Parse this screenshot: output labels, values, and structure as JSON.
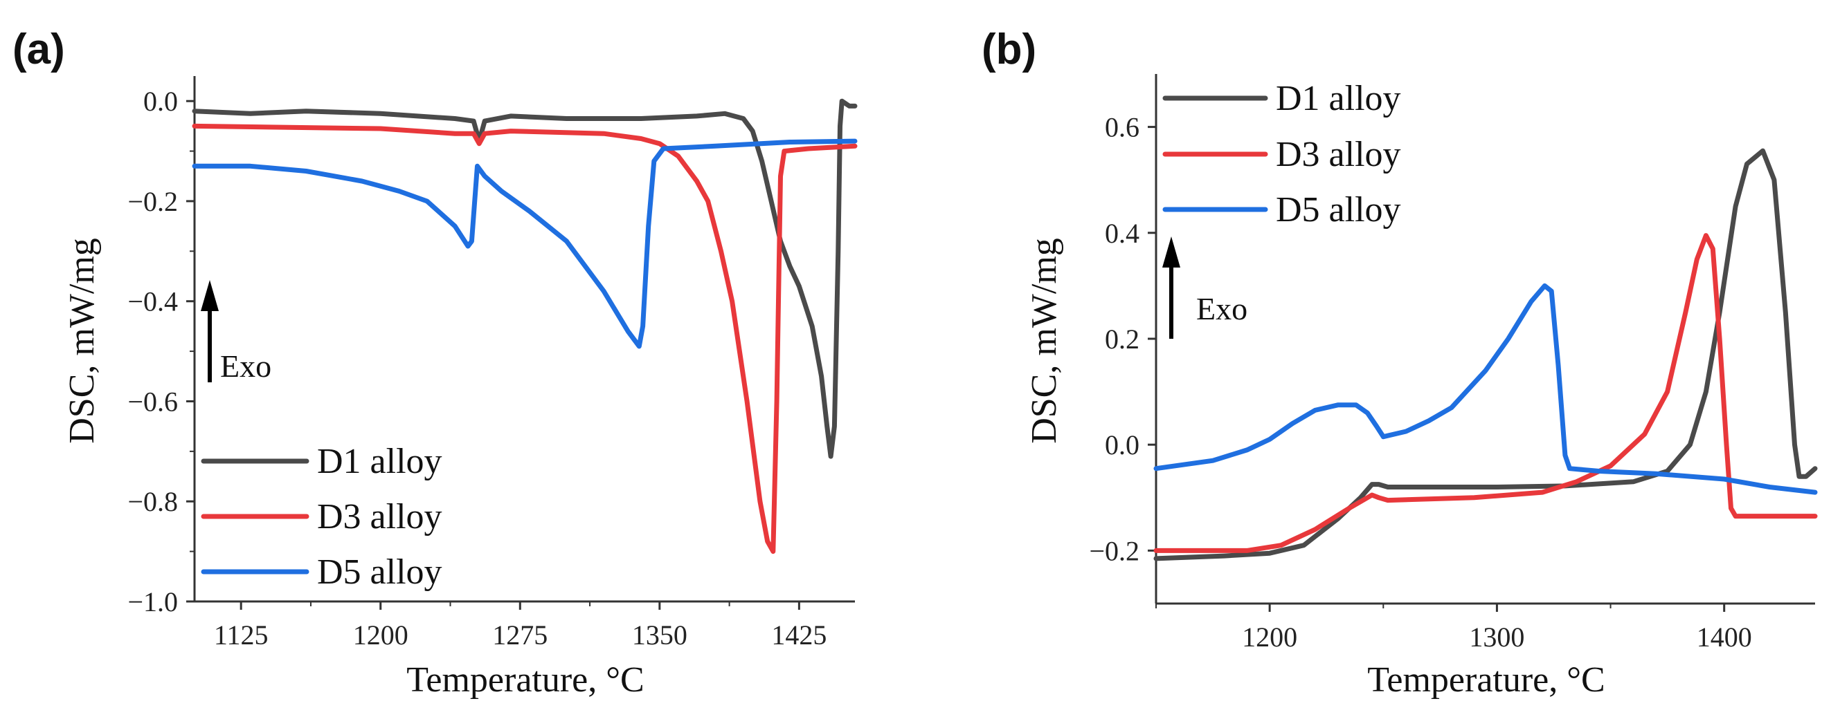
{
  "chart_data": [
    {
      "type": "line",
      "panel_label": "(a)",
      "xlabel": "Temperature, °C",
      "ylabel": "DSC, mW/mg",
      "xlim": [
        1100,
        1455
      ],
      "ylim": [
        -1.0,
        0.05
      ],
      "xticks": [
        1125,
        1200,
        1275,
        1350,
        1425
      ],
      "yticks": [
        0.0,
        -0.2,
        -0.4,
        -0.6,
        -0.8,
        -1.0
      ],
      "ytick_labels": [
        "0.0",
        "−0.2",
        "−0.4",
        "−0.6",
        "−0.8",
        "−1.0"
      ],
      "annotation": "Exo",
      "legend_position": "bottom-left",
      "series": [
        {
          "name": "D1 alloy",
          "color": "#4a4a4a",
          "x": [
            1100,
            1130,
            1160,
            1200,
            1240,
            1250,
            1253,
            1256,
            1270,
            1300,
            1340,
            1370,
            1385,
            1395,
            1400,
            1405,
            1410,
            1415,
            1420,
            1425,
            1432,
            1437,
            1440,
            1442,
            1444,
            1446,
            1447,
            1448,
            1452,
            1455
          ],
          "y": [
            -0.02,
            -0.025,
            -0.02,
            -0.025,
            -0.035,
            -0.04,
            -0.08,
            -0.04,
            -0.03,
            -0.035,
            -0.035,
            -0.03,
            -0.025,
            -0.035,
            -0.06,
            -0.12,
            -0.2,
            -0.28,
            -0.33,
            -0.37,
            -0.45,
            -0.55,
            -0.65,
            -0.71,
            -0.65,
            -0.3,
            -0.05,
            0.0,
            -0.01,
            -0.01
          ]
        },
        {
          "name": "D3 alloy",
          "color": "#e8383b",
          "x": [
            1100,
            1200,
            1240,
            1250,
            1253,
            1256,
            1270,
            1320,
            1340,
            1350,
            1360,
            1370,
            1376,
            1383,
            1389,
            1397,
            1404,
            1408,
            1411,
            1413,
            1415,
            1417,
            1430,
            1455
          ],
          "y": [
            -0.05,
            -0.055,
            -0.065,
            -0.065,
            -0.085,
            -0.065,
            -0.06,
            -0.065,
            -0.075,
            -0.085,
            -0.11,
            -0.16,
            -0.2,
            -0.3,
            -0.4,
            -0.6,
            -0.8,
            -0.88,
            -0.9,
            -0.6,
            -0.15,
            -0.1,
            -0.095,
            -0.09
          ]
        },
        {
          "name": "D5 alloy",
          "color": "#1f6fe0",
          "x": [
            1100,
            1130,
            1160,
            1190,
            1210,
            1225,
            1240,
            1247,
            1249,
            1252,
            1256,
            1265,
            1280,
            1300,
            1320,
            1333,
            1339,
            1341,
            1344,
            1347,
            1352,
            1380,
            1420,
            1455
          ],
          "y": [
            -0.13,
            -0.13,
            -0.14,
            -0.16,
            -0.18,
            -0.2,
            -0.25,
            -0.29,
            -0.28,
            -0.13,
            -0.15,
            -0.18,
            -0.22,
            -0.28,
            -0.38,
            -0.46,
            -0.49,
            -0.45,
            -0.25,
            -0.12,
            -0.095,
            -0.09,
            -0.082,
            -0.08
          ]
        }
      ]
    },
    {
      "type": "line",
      "panel_label": "(b)",
      "xlabel": "Temperature, °C",
      "ylabel": "DSC, mW/mg",
      "xlim": [
        1150,
        1440
      ],
      "ylim": [
        -0.3,
        0.7
      ],
      "xticks": [
        1200,
        1300,
        1400
      ],
      "yticks": [
        0.6,
        0.4,
        0.2,
        0.0,
        -0.2
      ],
      "ytick_labels": [
        "0.6",
        "0.4",
        "0.2",
        "0.0",
        "−0.2"
      ],
      "annotation": "Exo",
      "legend_position": "top-left",
      "series": [
        {
          "name": "D1 alloy",
          "color": "#4a4a4a",
          "x": [
            1150,
            1180,
            1200,
            1215,
            1230,
            1240,
            1245,
            1248,
            1252,
            1300,
            1330,
            1360,
            1375,
            1385,
            1392,
            1398,
            1405,
            1410,
            1417,
            1422,
            1427,
            1431,
            1433,
            1436,
            1440
          ],
          "y": [
            -0.215,
            -0.21,
            -0.205,
            -0.19,
            -0.14,
            -0.1,
            -0.075,
            -0.075,
            -0.08,
            -0.08,
            -0.078,
            -0.07,
            -0.05,
            0.0,
            0.1,
            0.25,
            0.45,
            0.53,
            0.555,
            0.5,
            0.25,
            0.0,
            -0.06,
            -0.06,
            -0.045
          ]
        },
        {
          "name": "D3 alloy",
          "color": "#e8383b",
          "x": [
            1150,
            1190,
            1205,
            1220,
            1235,
            1245,
            1248,
            1252,
            1290,
            1320,
            1335,
            1350,
            1365,
            1375,
            1383,
            1388,
            1392,
            1395,
            1398,
            1401,
            1403,
            1405,
            1440
          ],
          "y": [
            -0.2,
            -0.2,
            -0.19,
            -0.16,
            -0.12,
            -0.095,
            -0.1,
            -0.105,
            -0.1,
            -0.09,
            -0.07,
            -0.04,
            0.02,
            0.1,
            0.25,
            0.35,
            0.395,
            0.37,
            0.2,
            0.0,
            -0.12,
            -0.135,
            -0.135
          ]
        },
        {
          "name": "D5 alloy",
          "color": "#1f6fe0",
          "x": [
            1150,
            1175,
            1190,
            1200,
            1210,
            1220,
            1230,
            1238,
            1243,
            1247,
            1250,
            1260,
            1270,
            1280,
            1295,
            1305,
            1315,
            1321,
            1324,
            1327,
            1330,
            1332,
            1345,
            1370,
            1400,
            1420,
            1440
          ],
          "y": [
            -0.045,
            -0.03,
            -0.01,
            0.01,
            0.04,
            0.065,
            0.075,
            0.075,
            0.06,
            0.035,
            0.015,
            0.025,
            0.045,
            0.07,
            0.14,
            0.2,
            0.27,
            0.3,
            0.29,
            0.15,
            -0.02,
            -0.045,
            -0.05,
            -0.055,
            -0.065,
            -0.08,
            -0.09
          ]
        }
      ]
    }
  ]
}
